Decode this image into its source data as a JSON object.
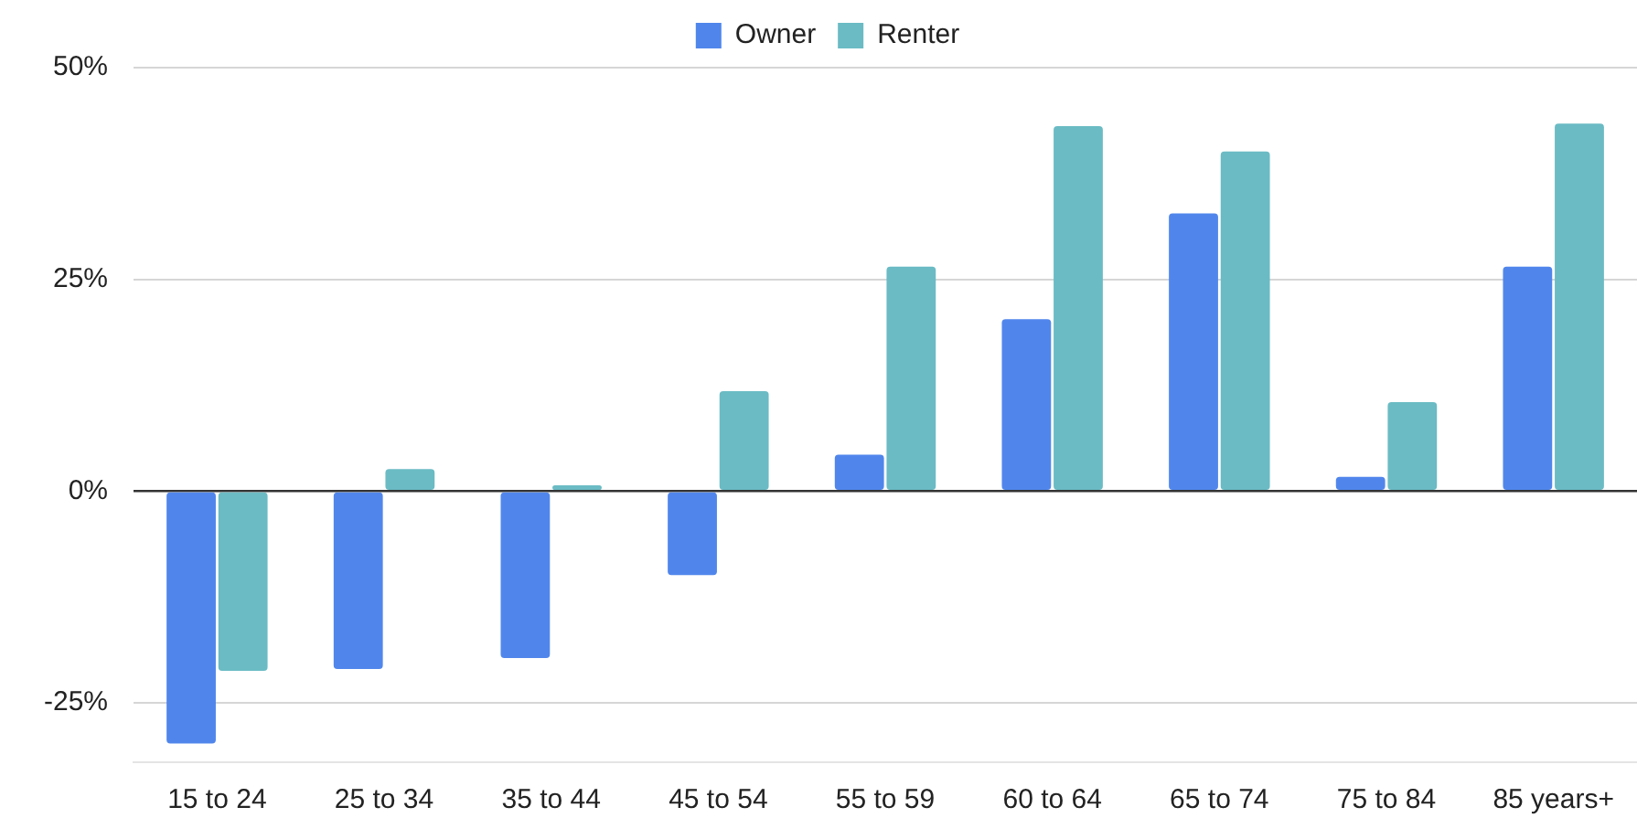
{
  "chart_data": {
    "type": "bar",
    "categories": [
      "15 to 24",
      "25 to 34",
      "35 to 44",
      "45 to 54",
      "55 to 59",
      "60 to 64",
      "65 to 74",
      "75 to 84",
      "85 years+"
    ],
    "series": [
      {
        "name": "Owner",
        "color": "#5086ec",
        "values": [
          -29.8,
          -21.0,
          -19.7,
          -9.9,
          4.3,
          20.3,
          32.8,
          1.7,
          26.5
        ]
      },
      {
        "name": "Renter",
        "color": "#6abbc4",
        "values": [
          -21.2,
          2.6,
          0.7,
          11.8,
          26.5,
          43.1,
          40.1,
          10.5,
          43.4
        ]
      }
    ],
    "ylim": [
      -32,
      50
    ],
    "yticks": [
      {
        "value": -25,
        "label": "-25%"
      },
      {
        "value": 0,
        "label": "0%"
      },
      {
        "value": 25,
        "label": "25%"
      },
      {
        "value": 50,
        "label": "50%"
      }
    ],
    "grid": "y",
    "legend": "top"
  }
}
